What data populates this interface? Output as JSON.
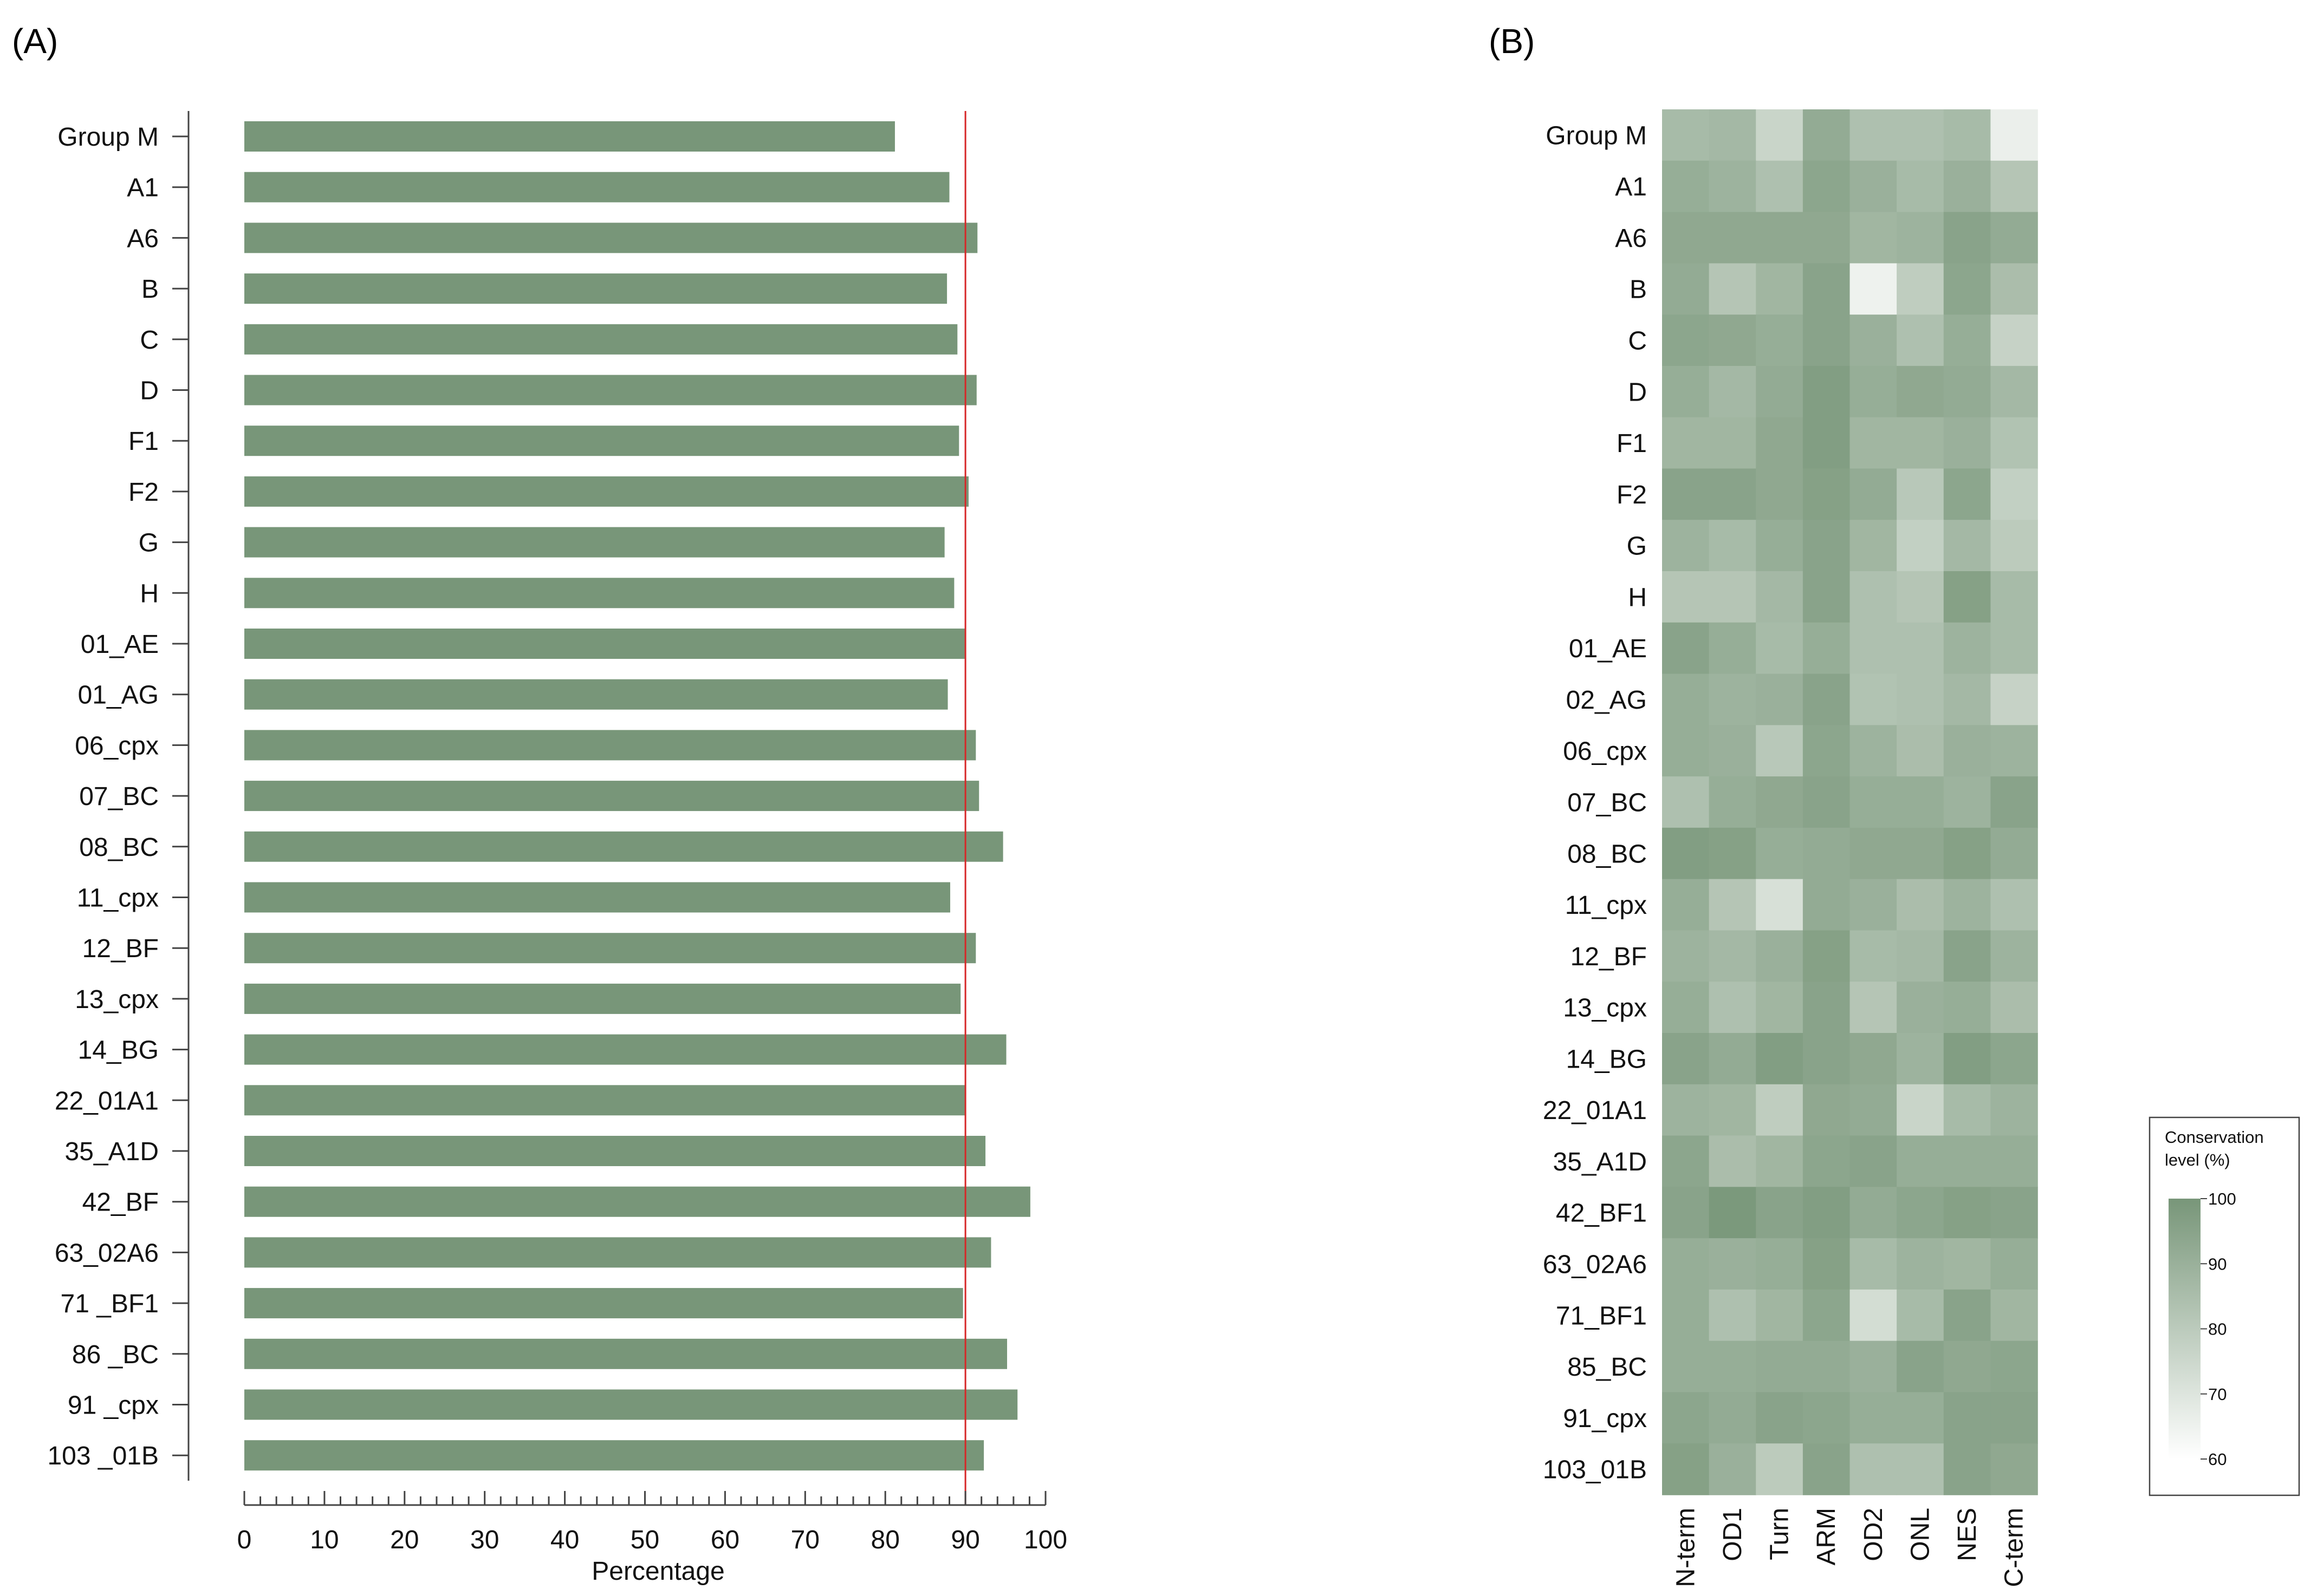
{
  "chart_data": [
    {
      "type": "bar",
      "panel": "(A)",
      "orientation": "horizontal",
      "categories": [
        "Group M",
        "A1",
        "A6",
        "B",
        "C",
        "D",
        "F1",
        "F2",
        "G",
        "H",
        "01_AE",
        "01_AG",
        "06_cpx",
        "07_BC",
        "08_BC",
        "11_cpx",
        "12_BF",
        "13_cpx",
        "14_BG",
        "22_01A1",
        "35_A1D",
        "42_BF",
        "63_02A6",
        "71 _BF1",
        "86 _BC",
        "91 _cpx",
        "103 _01B"
      ],
      "values": [
        81.2,
        88.0,
        91.5,
        87.7,
        89.0,
        91.4,
        89.2,
        90.4,
        87.4,
        88.6,
        90.0,
        87.8,
        91.3,
        91.7,
        94.7,
        88.1,
        91.3,
        89.4,
        95.1,
        90.0,
        92.5,
        98.1,
        93.2,
        89.7,
        95.2,
        96.5,
        92.3
      ],
      "xlabel": "Percentage",
      "xlim": [
        0,
        100
      ],
      "xticks": [
        0,
        10,
        20,
        30,
        40,
        50,
        60,
        70,
        80,
        90,
        100
      ],
      "reference_line": 90,
      "bar_color": "#789679",
      "reference_color": "#d62728"
    },
    {
      "type": "heatmap",
      "panel": "(B)",
      "rows": [
        "Group M",
        "A1",
        "A6",
        "B",
        "C",
        "D",
        "F1",
        "F2",
        "G",
        "H",
        "01_AE",
        "02_AG",
        "06_cpx",
        "07_BC",
        "08_BC",
        "11_cpx",
        "12_BF",
        "13_cpx",
        "14_BG",
        "22_01A1",
        "35_A1D",
        "42_BF1",
        "63_02A6",
        "71_BF1",
        "85_BC",
        "91_cpx",
        "103_01B"
      ],
      "columns": [
        "N-term",
        "OD1",
        "Turn",
        "ARM",
        "OD2",
        "ONL",
        "NES",
        "C-term"
      ],
      "values": [
        [
          86,
          87,
          76,
          92,
          84,
          84,
          86,
          66
        ],
        [
          91,
          89,
          84,
          94,
          90,
          86,
          90,
          82
        ],
        [
          93,
          93,
          93,
          93,
          88,
          89,
          95,
          92
        ],
        [
          92,
          82,
          88,
          95,
          65,
          79,
          94,
          85
        ],
        [
          94,
          93,
          91,
          95,
          90,
          84,
          91,
          77
        ],
        [
          91,
          87,
          92,
          97,
          91,
          93,
          92,
          87
        ],
        [
          88,
          88,
          93,
          97,
          88,
          88,
          90,
          83
        ],
        [
          95,
          95,
          93,
          96,
          92,
          81,
          94,
          78
        ],
        [
          89,
          86,
          91,
          95,
          88,
          78,
          87,
          80
        ],
        [
          82,
          82,
          87,
          95,
          84,
          82,
          96,
          86
        ],
        [
          95,
          91,
          86,
          91,
          84,
          84,
          89,
          86
        ],
        [
          91,
          89,
          90,
          95,
          83,
          84,
          87,
          77
        ],
        [
          91,
          90,
          81,
          94,
          89,
          85,
          90,
          89
        ],
        [
          84,
          91,
          93,
          95,
          91,
          91,
          89,
          95
        ],
        [
          97,
          96,
          91,
          92,
          93,
          93,
          96,
          92
        ],
        [
          91,
          82,
          72,
          92,
          90,
          85,
          89,
          84
        ],
        [
          89,
          87,
          90,
          96,
          86,
          87,
          95,
          89
        ],
        [
          91,
          84,
          88,
          95,
          82,
          90,
          91,
          85
        ],
        [
          95,
          92,
          97,
          95,
          93,
          89,
          97,
          94
        ],
        [
          89,
          88,
          79,
          93,
          92,
          76,
          86,
          89
        ],
        [
          94,
          85,
          88,
          94,
          95,
          91,
          91,
          91
        ],
        [
          95,
          99,
          95,
          97,
          92,
          94,
          96,
          95
        ],
        [
          91,
          90,
          91,
          96,
          86,
          89,
          88,
          91
        ],
        [
          91,
          84,
          88,
          94,
          73,
          86,
          95,
          88
        ],
        [
          91,
          91,
          92,
          92,
          90,
          95,
          93,
          94
        ],
        [
          94,
          92,
          95,
          94,
          91,
          91,
          95,
          95
        ],
        [
          96,
          90,
          80,
          95,
          84,
          84,
          95,
          93
        ]
      ],
      "legend": {
        "title_line1": "Conservation",
        "title_line2": "level (%)",
        "ticks": [
          100,
          90,
          80,
          70,
          60
        ],
        "range": [
          60,
          100
        ],
        "color_high": "#789679",
        "color_low": "#ffffff"
      }
    }
  ]
}
